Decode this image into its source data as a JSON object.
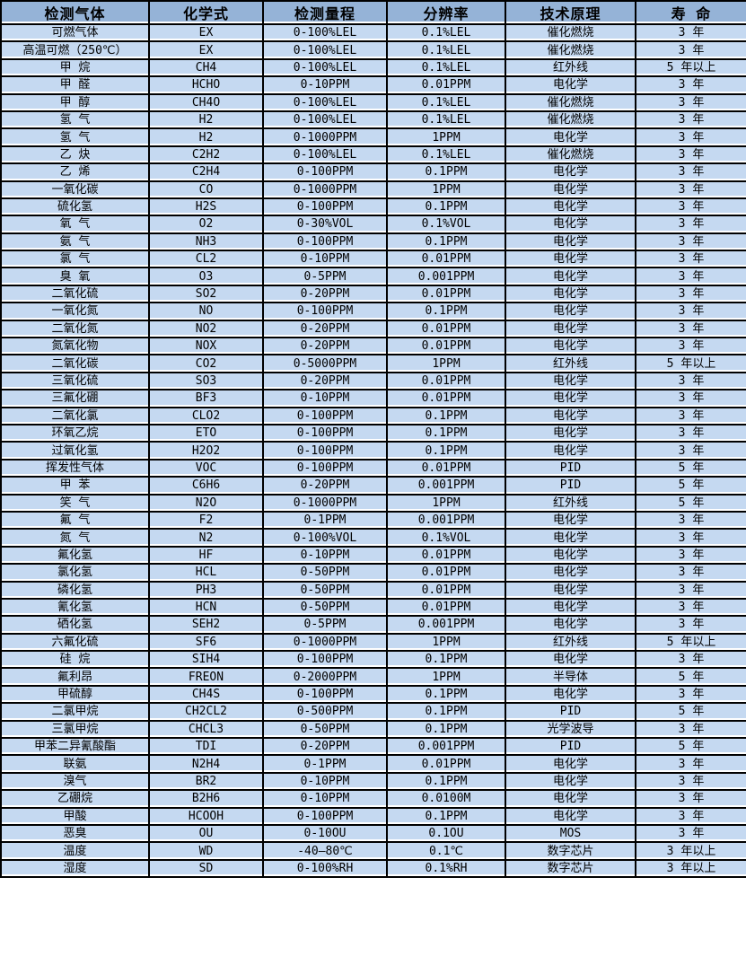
{
  "colors": {
    "header_bg": "#95B3D7",
    "row_bg": "#C5D9F1",
    "border": "#000000",
    "text": "#000000"
  },
  "chart_data": {
    "type": "table",
    "title": "",
    "columns": [
      "检测气体",
      "化学式",
      "检测量程",
      "分辨率",
      "技术原理",
      "寿 命"
    ],
    "rows": [
      [
        "可燃气体",
        "EX",
        "0-100%LEL",
        "0.1%LEL",
        "催化燃烧",
        "3 年"
      ],
      [
        "高温可燃（250℃）",
        "EX",
        "0-100%LEL",
        "0.1%LEL",
        "催化燃烧",
        "3 年"
      ],
      [
        "甲 烷",
        "CH4",
        "0-100%LEL",
        "0.1%LEL",
        "红外线",
        "5 年以上"
      ],
      [
        "甲 醛",
        "HCHO",
        "0-10PPM",
        "0.01PPM",
        "电化学",
        "3 年"
      ],
      [
        "甲 醇",
        "CH4O",
        "0-100%LEL",
        "0.1%LEL",
        "催化燃烧",
        "3 年"
      ],
      [
        "氢 气",
        "H2",
        "0-100%LEL",
        "0.1%LEL",
        "催化燃烧",
        "3 年"
      ],
      [
        "氢 气",
        "H2",
        "0-1000PPM",
        "1PPM",
        "电化学",
        "3 年"
      ],
      [
        "乙 炔",
        "C2H2",
        "0-100%LEL",
        "0.1%LEL",
        "催化燃烧",
        "3 年"
      ],
      [
        "乙 烯",
        "C2H4",
        "0-100PPM",
        "0.1PPM",
        "电化学",
        "3 年"
      ],
      [
        "一氧化碳",
        "CO",
        "0-1000PPM",
        "1PPM",
        "电化学",
        "3 年"
      ],
      [
        "硫化氢",
        "H2S",
        "0-100PPM",
        "0.1PPM",
        "电化学",
        "3 年"
      ],
      [
        "氧 气",
        "O2",
        "0-30%VOL",
        "0.1%VOL",
        "电化学",
        "3 年"
      ],
      [
        "氨 气",
        "NH3",
        "0-100PPM",
        "0.1PPM",
        "电化学",
        "3 年"
      ],
      [
        "氯 气",
        "CL2",
        "0-10PPM",
        "0.01PPM",
        "电化学",
        "3 年"
      ],
      [
        "臭 氧",
        "O3",
        "0-5PPM",
        "0.001PPM",
        "电化学",
        "3 年"
      ],
      [
        "二氧化硫",
        "SO2",
        "0-20PPM",
        "0.01PPM",
        "电化学",
        "3 年"
      ],
      [
        "一氧化氮",
        "NO",
        "0-100PPM",
        "0.1PPM",
        "电化学",
        "3 年"
      ],
      [
        "二氧化氮",
        "NO2",
        "0-20PPM",
        "0.01PPM",
        "电化学",
        "3 年"
      ],
      [
        "氮氧化物",
        "NOX",
        "0-20PPM",
        "0.01PPM",
        "电化学",
        "3 年"
      ],
      [
        "二氧化碳",
        "CO2",
        "0-5000PPM",
        "1PPM",
        "红外线",
        "5 年以上"
      ],
      [
        "三氧化硫",
        "SO3",
        "0-20PPM",
        "0.01PPM",
        "电化学",
        "3 年"
      ],
      [
        "三氟化硼",
        "BF3",
        "0-10PPM",
        "0.01PPM",
        "电化学",
        "3 年"
      ],
      [
        "二氧化氯",
        "CLO2",
        "0-100PPM",
        "0.1PPM",
        "电化学",
        "3 年"
      ],
      [
        "环氧乙烷",
        "ETO",
        "0-100PPM",
        "0.1PPM",
        "电化学",
        "3 年"
      ],
      [
        "过氧化氢",
        "H2O2",
        "0-100PPM",
        "0.1PPM",
        "电化学",
        "3 年"
      ],
      [
        "挥发性气体",
        "VOC",
        "0-100PPM",
        "0.01PPM",
        "PID",
        "5 年"
      ],
      [
        "甲 苯",
        "C6H6",
        "0-20PPM",
        "0.001PPM",
        "PID",
        "5 年"
      ],
      [
        "笑 气",
        "N2O",
        "0-1000PPM",
        "1PPM",
        "红外线",
        "5 年"
      ],
      [
        "氟 气",
        "F2",
        "0-1PPM",
        "0.001PPM",
        "电化学",
        "3 年"
      ],
      [
        "氮 气",
        "N2",
        "0-100%VOL",
        "0.1%VOL",
        "电化学",
        "3 年"
      ],
      [
        "氟化氢",
        "HF",
        "0-10PPM",
        "0.01PPM",
        "电化学",
        "3 年"
      ],
      [
        "氯化氢",
        "HCL",
        "0-50PPM",
        "0.01PPM",
        "电化学",
        "3 年"
      ],
      [
        "磷化氢",
        "PH3",
        "0-50PPM",
        "0.01PPM",
        "电化学",
        "3 年"
      ],
      [
        "氰化氢",
        "HCN",
        "0-50PPM",
        "0.01PPM",
        "电化学",
        "3 年"
      ],
      [
        "硒化氢",
        "SEH2",
        "0-5PPM",
        "0.001PPM",
        "电化学",
        "3 年"
      ],
      [
        "六氟化硫",
        "SF6",
        "0-1000PPM",
        "1PPM",
        "红外线",
        "5 年以上"
      ],
      [
        "硅 烷",
        "SIH4",
        "0-100PPM",
        "0.1PPM",
        "电化学",
        "3 年"
      ],
      [
        "氟利昂",
        "FREON",
        "0-2000PPM",
        "1PPM",
        "半导体",
        "5 年"
      ],
      [
        "甲硫醇",
        "CH4S",
        "0-100PPM",
        "0.1PPM",
        "电化学",
        "3 年"
      ],
      [
        "二氯甲烷",
        "CH2CL2",
        "0-500PPM",
        "0.1PPM",
        "PID",
        "5 年"
      ],
      [
        "三氯甲烷",
        "CHCL3",
        "0-50PPM",
        "0.1PPM",
        "光学波导",
        "3 年"
      ],
      [
        "甲苯二异氰酸酯",
        "TDI",
        "0-20PPM",
        "0.001PPM",
        "PID",
        "5 年"
      ],
      [
        "联氨",
        "N2H4",
        "0-1PPM",
        "0.01PPM",
        "电化学",
        "3 年"
      ],
      [
        "溴气",
        "BR2",
        "0-10PPM",
        "0.1PPM",
        "电化学",
        "3 年"
      ],
      [
        "乙硼烷",
        "B2H6",
        "0-10PPM",
        "0.0100M",
        "电化学",
        "3 年"
      ],
      [
        "甲酸",
        "HCOOH",
        "0-100PPM",
        "0.1PPM",
        "电化学",
        "3 年"
      ],
      [
        "恶臭",
        "OU",
        "0-10OU",
        "0.1OU",
        "MOS",
        "3 年"
      ],
      [
        "温度",
        "WD",
        "-40—80℃",
        "0.1℃",
        "数字芯片",
        "3 年以上"
      ],
      [
        "湿度",
        "SD",
        "0-100%RH",
        "0.1%RH",
        "数字芯片",
        "3 年以上"
      ]
    ]
  }
}
